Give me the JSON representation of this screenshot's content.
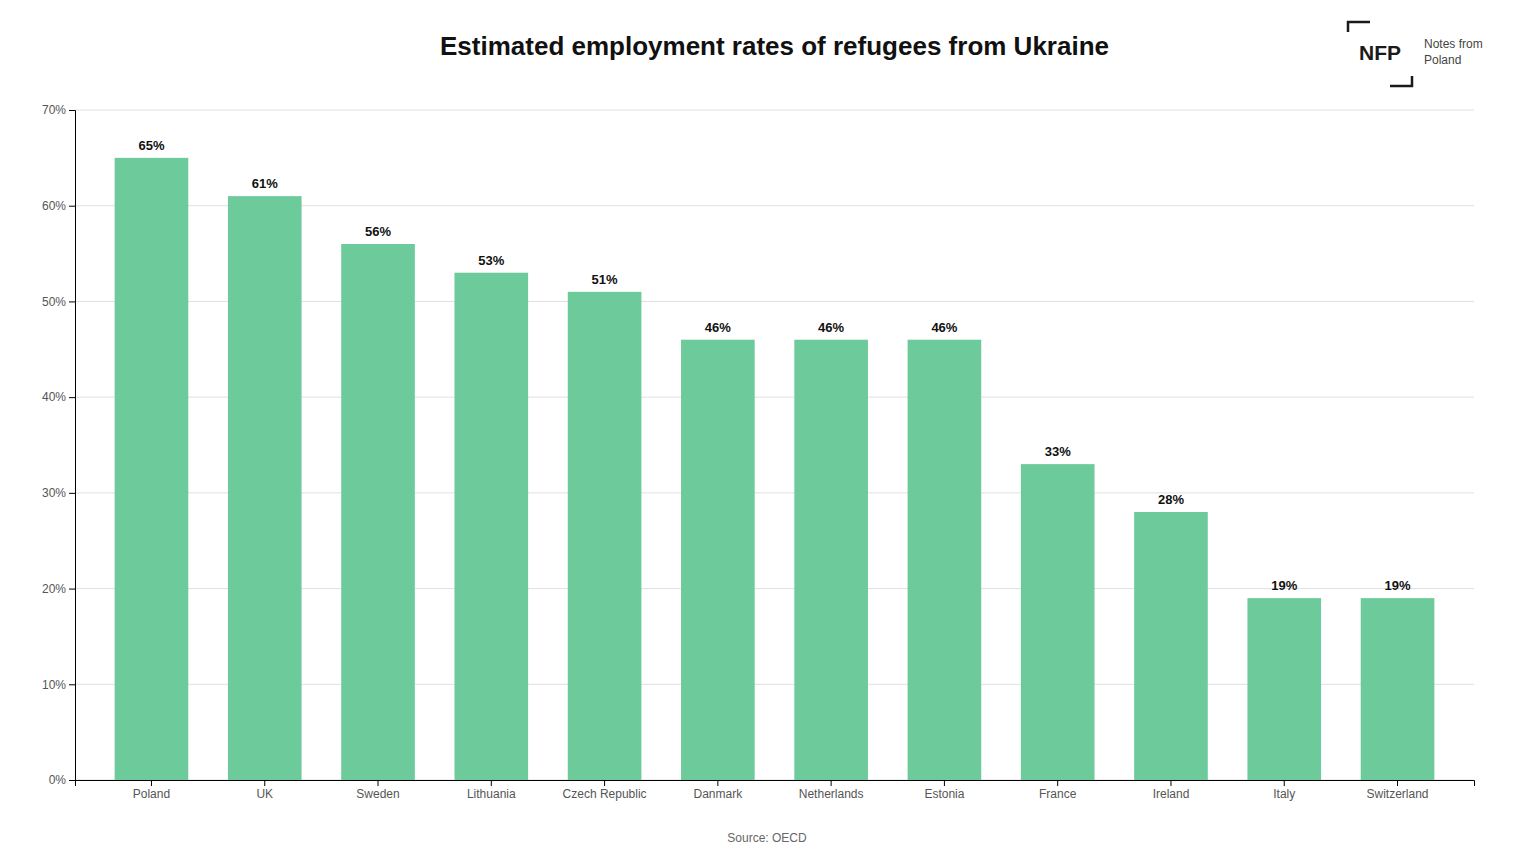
{
  "chart_data": {
    "type": "bar",
    "title": "Estimated employment rates of refugees from Ukraine",
    "categories": [
      "Poland",
      "UK",
      "Sweden",
      "Lithuania",
      "Czech Republic",
      "Danmark",
      "Netherlands",
      "Estonia",
      "France",
      "Ireland",
      "Italy",
      "Switzerland"
    ],
    "values": [
      65,
      61,
      56,
      53,
      51,
      46,
      46,
      46,
      33,
      28,
      19,
      19
    ],
    "value_labels": [
      "65%",
      "61%",
      "56%",
      "53%",
      "51%",
      "46%",
      "46%",
      "46%",
      "33%",
      "28%",
      "19%",
      "19%"
    ],
    "data_labels": true,
    "color": "#6dca9a",
    "ylim": [
      0,
      70
    ],
    "yticks": [
      {
        "value": 0,
        "label": "0%"
      },
      {
        "value": 10,
        "label": "10%"
      },
      {
        "value": 20,
        "label": "20%"
      },
      {
        "value": 30,
        "label": "30%"
      },
      {
        "value": 40,
        "label": "40%"
      },
      {
        "value": 50,
        "label": "50%"
      },
      {
        "value": 60,
        "label": "60%"
      },
      {
        "value": 70,
        "label": "70%"
      }
    ],
    "grid": true,
    "annotations": [
      "NFP",
      "Notes from\nPoland",
      "Source: OECD"
    ]
  }
}
